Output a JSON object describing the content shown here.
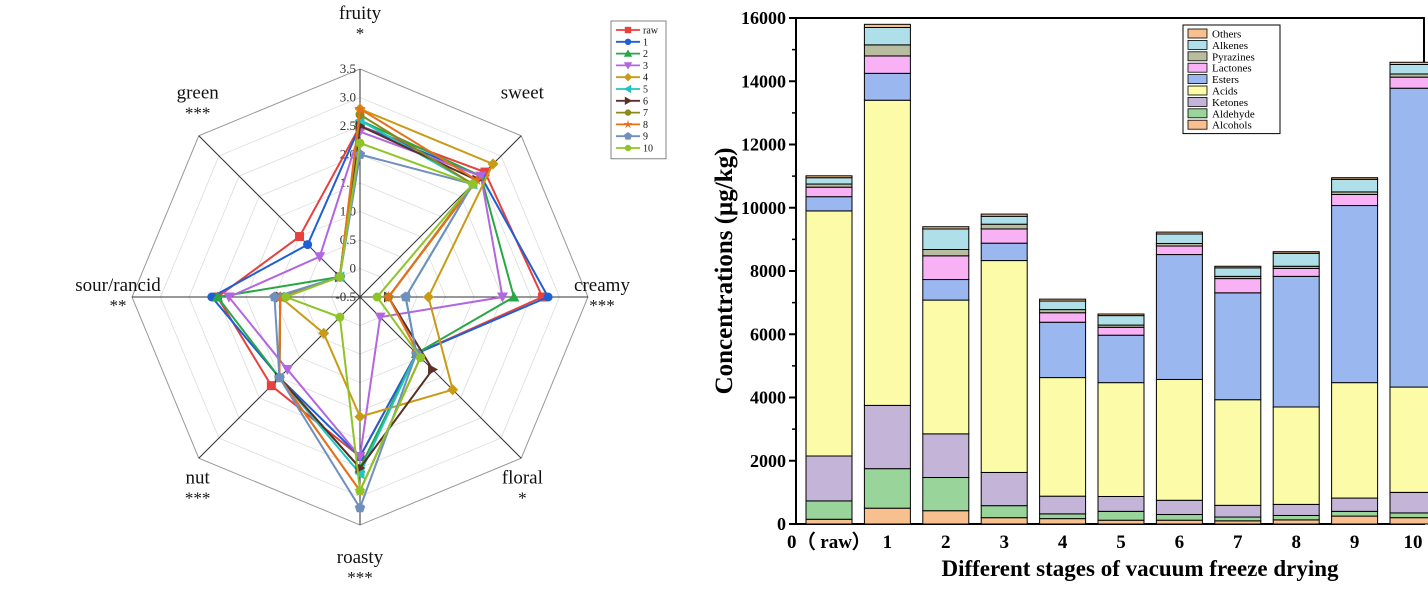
{
  "chart_data": [
    {
      "type": "radar",
      "series_order": [
        "raw",
        "1",
        "2",
        "3",
        "4",
        "5",
        "6",
        "7",
        "8",
        "9",
        "10"
      ],
      "axes": [
        {
          "name": "fruity",
          "sig": "*"
        },
        {
          "name": "sweet",
          "sig": ""
        },
        {
          "name": "creamy",
          "sig": "***"
        },
        {
          "name": "floral",
          "sig": "*"
        },
        {
          "name": "roasty",
          "sig": "***"
        },
        {
          "name": "nut",
          "sig": "***"
        },
        {
          "name": "sour/rancid",
          "sig": "**"
        },
        {
          "name": "green",
          "sig": "***"
        }
      ],
      "range": [
        -0.5,
        3.5
      ],
      "ticks": [
        "-0.5",
        "0",
        "0.5",
        "1.0",
        "1.5",
        "2.0",
        "2.5",
        "3.0",
        "3.5"
      ],
      "series": [
        {
          "name": "raw",
          "color": "#e8403c",
          "marker": "square",
          "values": [
            2.5,
            2.6,
            2.7,
            0.9,
            2.3,
            1.7,
            2.0,
            1.0
          ]
        },
        {
          "name": "1",
          "color": "#1f5fd6",
          "marker": "circle",
          "values": [
            2.5,
            2.5,
            2.8,
            0.9,
            2.3,
            1.5,
            2.1,
            0.8
          ]
        },
        {
          "name": "2",
          "color": "#27a845",
          "marker": "triangle",
          "values": [
            2.6,
            2.5,
            2.2,
            0.9,
            2.5,
            1.5,
            2.0,
            0.0
          ]
        },
        {
          "name": "3",
          "color": "#b266e0",
          "marker": "triangle-down",
          "values": [
            2.4,
            2.5,
            2.0,
            0.0,
            2.3,
            1.3,
            1.8,
            0.5
          ]
        },
        {
          "name": "4",
          "color": "#c99a16",
          "marker": "diamond",
          "values": [
            2.8,
            2.8,
            0.7,
            1.8,
            1.6,
            0.4,
            0.9,
            0.0
          ]
        },
        {
          "name": "5",
          "color": "#22c3c0",
          "marker": "triangle-left",
          "values": [
            2.6,
            2.3,
            0.3,
            0.9,
            2.6,
            1.5,
            0.9,
            0.0
          ]
        },
        {
          "name": "6",
          "color": "#5a3028",
          "marker": "triangle-right",
          "values": [
            2.5,
            2.4,
            0.0,
            1.3,
            2.5,
            1.5,
            0.9,
            0.0
          ]
        },
        {
          "name": "7",
          "color": "#8a8a1a",
          "marker": "circle",
          "values": [
            2.7,
            2.3,
            0.0,
            1.0,
            2.9,
            1.5,
            0.9,
            0.0
          ]
        },
        {
          "name": "8",
          "color": "#e8701c",
          "marker": "star",
          "values": [
            2.8,
            2.4,
            0.0,
            1.0,
            2.9,
            1.5,
            0.9,
            0.0
          ]
        },
        {
          "name": "9",
          "color": "#6f8fbf",
          "marker": "pentagon",
          "values": [
            2.0,
            2.3,
            0.3,
            0.9,
            3.2,
            1.5,
            1.0,
            0.0
          ]
        },
        {
          "name": "10",
          "color": "#8fc428",
          "marker": "circle",
          "values": [
            2.2,
            2.3,
            -0.2,
            1.0,
            2.9,
            0.0,
            0.8,
            0.0
          ]
        }
      ]
    },
    {
      "type": "bar",
      "stacked": true,
      "ylabel": "Concentrations (μg/kg)",
      "xlabel": "Different stages of vacuum freeze drying",
      "categories": [
        "0（ raw）",
        "1",
        "2",
        "3",
        "4",
        "5",
        "6",
        "7",
        "8",
        "9",
        "10"
      ],
      "ylim": [
        0,
        16000
      ],
      "yticks": [
        "0",
        "2000",
        "4000",
        "6000",
        "8000",
        "10000",
        "12000",
        "14000",
        "16000"
      ],
      "series": [
        {
          "name": "Alcohols",
          "color": "#f8c08e",
          "values": [
            150,
            500,
            420,
            200,
            170,
            120,
            120,
            100,
            130,
            250,
            200
          ]
        },
        {
          "name": "Aldehyde",
          "color": "#99d59a",
          "values": [
            580,
            1250,
            1050,
            380,
            150,
            280,
            180,
            120,
            140,
            150,
            150
          ]
        },
        {
          "name": "Ketones",
          "color": "#c4b5d8",
          "values": [
            1420,
            2000,
            1380,
            1050,
            560,
            470,
            450,
            370,
            350,
            420,
            650
          ]
        },
        {
          "name": "Acids",
          "color": "#fbfba8",
          "values": [
            7750,
            9650,
            4230,
            6700,
            3750,
            3600,
            3820,
            3340,
            3080,
            3650,
            3330
          ]
        },
        {
          "name": "Esters",
          "color": "#9ab7ef",
          "values": [
            450,
            850,
            650,
            550,
            1750,
            1500,
            3950,
            3380,
            4130,
            5600,
            9450
          ]
        },
        {
          "name": "Lactones",
          "color": "#f7b1f4",
          "values": [
            300,
            550,
            750,
            450,
            300,
            250,
            270,
            450,
            250,
            350,
            350
          ]
        },
        {
          "name": "Pyrazines",
          "color": "#b9bd9f",
          "values": [
            100,
            350,
            200,
            150,
            100,
            70,
            80,
            70,
            70,
            80,
            100
          ]
        },
        {
          "name": "Alkenes",
          "color": "#afe0e9",
          "values": [
            200,
            550,
            650,
            250,
            270,
            300,
            300,
            270,
            410,
            400,
            300
          ]
        },
        {
          "name": "Others",
          "color": "#f8c08e",
          "values": [
            60,
            100,
            70,
            70,
            60,
            50,
            60,
            50,
            50,
            50,
            70
          ]
        }
      ],
      "legend_order": [
        "Others",
        "Alkenes",
        "Pyrazines",
        "Lactones",
        "Esters",
        "Acids",
        "Ketones",
        "Aldehyde",
        "Alcohols"
      ],
      "legend_position": "top-right"
    }
  ]
}
